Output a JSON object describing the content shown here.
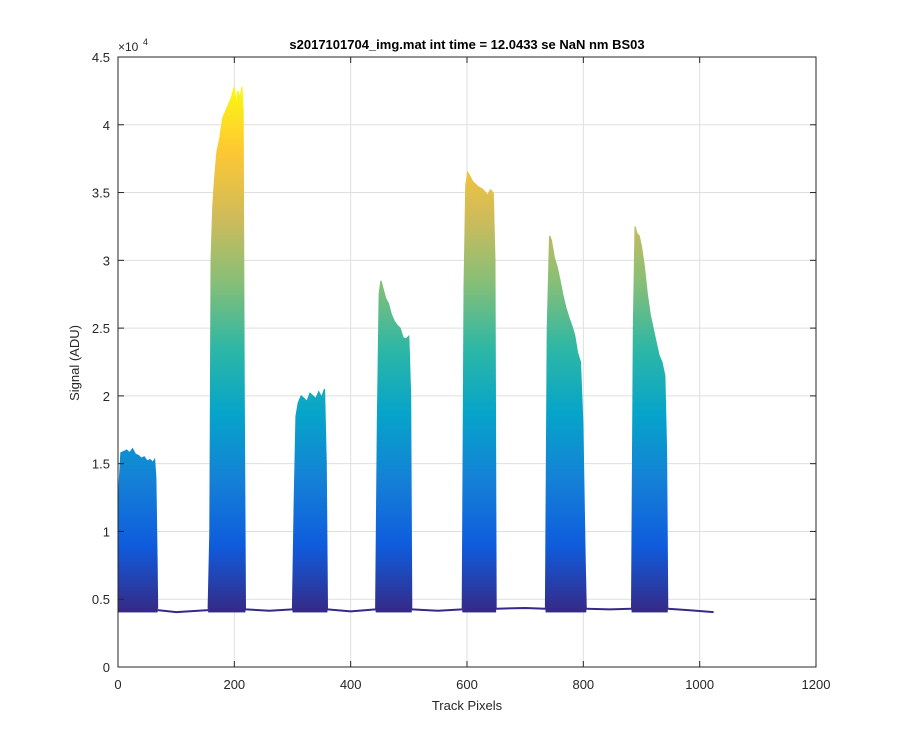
{
  "chart_data": {
    "type": "area",
    "title": "s2017101704_img.mat int time = 12.0433 se  NaN nm BS03",
    "xlabel": "Track Pixels",
    "ylabel": "Signal (ADU)",
    "xlim": [
      0,
      1200
    ],
    "ylim": [
      0,
      45000
    ],
    "x_ticks": [
      0,
      200,
      400,
      600,
      800,
      1000,
      1200
    ],
    "y_ticks": [
      0,
      5000,
      10000,
      15000,
      20000,
      25000,
      30000,
      35000,
      40000,
      45000
    ],
    "x_tick_labels": [
      "0",
      "200",
      "400",
      "600",
      "800",
      "1000",
      "1200"
    ],
    "y_tick_labels": [
      "0",
      "0.5",
      "1",
      "1.5",
      "2",
      "2.5",
      "3",
      "3.5",
      "4",
      "4.5"
    ],
    "y_exponent": {
      "base": "×10",
      "power": "4"
    },
    "grid": true,
    "colormap": "parula",
    "colormap_colors": [
      "#352A87",
      "#0F5CDD",
      "#1481D6",
      "#06A4CA",
      "#2EB7A4",
      "#87BF77",
      "#D1BB59",
      "#FEC832",
      "#F9FB0E"
    ],
    "baseline": 4100,
    "series": [
      {
        "x": [
          0,
          2,
          5,
          10,
          15,
          20,
          25,
          30,
          35,
          40,
          45,
          50,
          55,
          60,
          63,
          65,
          67,
          68
        ],
        "y": [
          4100,
          13500,
          15800,
          15900,
          16000,
          15800,
          16100,
          15700,
          15600,
          15400,
          15500,
          15200,
          15300,
          15100,
          15300,
          14000,
          8000,
          4300
        ]
      },
      {
        "x": [
          155,
          158,
          160,
          163,
          166,
          170,
          175,
          180,
          185,
          190,
          195,
          200,
          203,
          206,
          210,
          213,
          215,
          217,
          219
        ],
        "y": [
          4300,
          10000,
          30000,
          34000,
          36000,
          38000,
          39000,
          40500,
          41000,
          41500,
          42000,
          42800,
          41500,
          42500,
          42000,
          42800,
          41000,
          20000,
          4300
        ]
      },
      {
        "x": [
          300,
          303,
          306,
          310,
          315,
          320,
          325,
          330,
          335,
          340,
          345,
          350,
          355,
          358,
          360
        ],
        "y": [
          4300,
          12000,
          18500,
          19500,
          20000,
          19800,
          19600,
          20200,
          20000,
          19800,
          20300,
          19900,
          20500,
          15000,
          4300
        ]
      },
      {
        "x": [
          443,
          446,
          449,
          452,
          455,
          460,
          465,
          470,
          475,
          480,
          485,
          490,
          495,
          500,
          503,
          505
        ],
        "y": [
          4300,
          18000,
          27500,
          28500,
          28000,
          27200,
          26800,
          26000,
          25500,
          25200,
          25000,
          24300,
          24200,
          24400,
          20000,
          4300
        ]
      },
      {
        "x": [
          592,
          595,
          598,
          601,
          605,
          610,
          615,
          620,
          625,
          630,
          635,
          640,
          645,
          648,
          650
        ],
        "y": [
          4300,
          28000,
          35500,
          36500,
          36200,
          35800,
          35600,
          35400,
          35300,
          35100,
          34800,
          35200,
          35000,
          30000,
          4300
        ]
      },
      {
        "x": [
          735,
          738,
          742,
          745,
          750,
          755,
          760,
          765,
          770,
          775,
          780,
          785,
          790,
          795,
          799,
          803,
          805
        ],
        "y": [
          4300,
          25000,
          31800,
          31500,
          30200,
          29500,
          28500,
          27400,
          26500,
          25800,
          25200,
          24500,
          23200,
          22500,
          18000,
          8000,
          4300
        ]
      },
      {
        "x": [
          883,
          886,
          889,
          892,
          896,
          900,
          905,
          910,
          915,
          920,
          925,
          930,
          935,
          940,
          943,
          945
        ],
        "y": [
          4300,
          25000,
          32500,
          32000,
          31800,
          31000,
          29500,
          27500,
          26000,
          25000,
          24000,
          23000,
          22500,
          21500,
          16000,
          4300
        ]
      }
    ],
    "gaps": [
      {
        "x": [
          68,
          100,
          155
        ],
        "y": [
          4200,
          4050,
          4200
        ]
      },
      {
        "x": [
          219,
          260,
          300
        ],
        "y": [
          4250,
          4150,
          4250
        ]
      },
      {
        "x": [
          360,
          400,
          443
        ],
        "y": [
          4250,
          4100,
          4250
        ]
      },
      {
        "x": [
          505,
          550,
          592
        ],
        "y": [
          4250,
          4150,
          4250
        ]
      },
      {
        "x": [
          650,
          700,
          735
        ],
        "y": [
          4300,
          4350,
          4300
        ]
      },
      {
        "x": [
          805,
          845,
          883
        ],
        "y": [
          4300,
          4250,
          4300
        ]
      },
      {
        "x": [
          945,
          980,
          1024
        ],
        "y": [
          4300,
          4200,
          4050
        ]
      }
    ]
  }
}
